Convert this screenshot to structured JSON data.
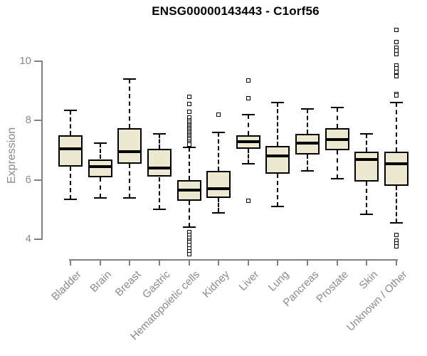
{
  "title": "ENSG00000143443 - C1orf56",
  "y_axis": {
    "label": "Expression",
    "tick_labels": [
      "10",
      "8",
      "6",
      "4"
    ]
  },
  "chart_data": {
    "type": "boxplot",
    "title": "ENSG00000143443 - C1orf56",
    "xlabel": "",
    "ylabel": "Expression",
    "ylim": [
      3.3,
      11.3
    ],
    "y_ticks": [
      10,
      8,
      6,
      4
    ],
    "grid": false,
    "legend": "none",
    "categories": [
      "Bladder",
      "Brain",
      "Breast",
      "Gastric",
      "Hematopoietic cells",
      "Kidney",
      "Liver",
      "Lung",
      "Pancreas",
      "Prostate",
      "Skin",
      "Unknown / Other"
    ],
    "boxes": [
      {
        "category": "Bladder",
        "low": 5.35,
        "q1": 6.45,
        "median": 7.05,
        "q3": 7.5,
        "high": 8.35,
        "outliers": []
      },
      {
        "category": "Brain",
        "low": 5.4,
        "q1": 6.1,
        "median": 6.45,
        "q3": 6.7,
        "high": 7.25,
        "outliers": []
      },
      {
        "category": "Breast",
        "low": 5.4,
        "q1": 6.55,
        "median": 6.95,
        "q3": 7.75,
        "high": 9.4,
        "outliers": []
      },
      {
        "category": "Gastric",
        "low": 5.0,
        "q1": 6.1,
        "median": 6.4,
        "q3": 7.05,
        "high": 7.55,
        "outliers": []
      },
      {
        "category": "Hematopoietic cells",
        "low": 4.4,
        "q1": 5.3,
        "median": 5.65,
        "q3": 6.0,
        "high": 7.1,
        "outliers": [
          8.8,
          8.55,
          8.3,
          8.1,
          8.0,
          7.95,
          7.9,
          7.85,
          7.8,
          7.75,
          7.7,
          7.65,
          7.6,
          7.55,
          7.5,
          7.45,
          7.4,
          7.35,
          7.3,
          7.25,
          7.2,
          4.25,
          4.15,
          4.05,
          3.95,
          3.9,
          3.8,
          3.7,
          3.6,
          3.5
        ]
      },
      {
        "category": "Kidney",
        "low": 4.9,
        "q1": 5.4,
        "median": 5.7,
        "q3": 6.3,
        "high": 7.6,
        "outliers": [
          8.2
        ]
      },
      {
        "category": "Liver",
        "low": 6.55,
        "q1": 7.05,
        "median": 7.3,
        "q3": 7.5,
        "high": 8.2,
        "outliers": [
          9.35,
          8.75,
          5.3
        ]
      },
      {
        "category": "Lung",
        "low": 5.1,
        "q1": 6.2,
        "median": 6.8,
        "q3": 7.15,
        "high": 8.6,
        "outliers": []
      },
      {
        "category": "Pancreas",
        "low": 6.3,
        "q1": 6.85,
        "median": 7.25,
        "q3": 7.55,
        "high": 8.4,
        "outliers": []
      },
      {
        "category": "Prostate",
        "low": 6.05,
        "q1": 7.0,
        "median": 7.35,
        "q3": 7.75,
        "high": 8.45,
        "outliers": []
      },
      {
        "category": "Skin",
        "low": 4.85,
        "q1": 5.95,
        "median": 6.7,
        "q3": 6.95,
        "high": 7.55,
        "outliers": []
      },
      {
        "category": "Unknown / Other",
        "low": 4.55,
        "q1": 5.8,
        "median": 6.55,
        "q3": 6.95,
        "high": 8.6,
        "outliers": [
          11.05,
          10.65,
          10.45,
          10.35,
          10.25,
          9.85,
          9.75,
          9.65,
          9.5,
          8.9,
          8.85,
          4.15,
          3.95,
          3.85,
          3.75
        ]
      }
    ]
  },
  "colors": {
    "background": "#ffffff",
    "box_fill": "#ede8d0",
    "box_border": "#000000",
    "median": "#000000",
    "whisker": "#000000",
    "outlier_border": "#000000",
    "outlier_fill": "#ffffff",
    "axis_line": "#808080",
    "axis_text": "#8a8a8a",
    "title_text": "#000000"
  }
}
